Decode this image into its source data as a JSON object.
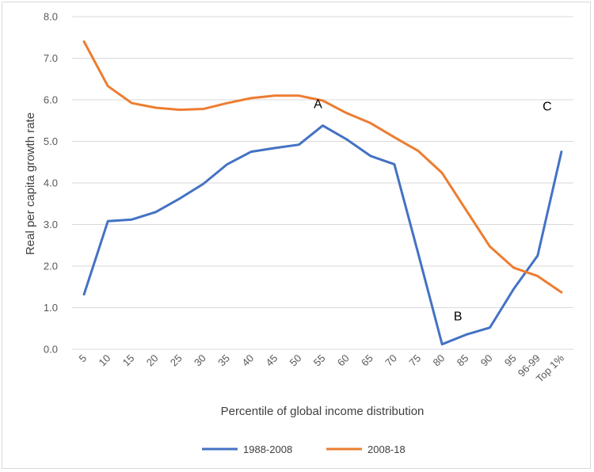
{
  "chart_data": {
    "type": "line",
    "title": "",
    "xlabel": "Percentile of global income distribution",
    "ylabel": "Real per capita growth rate",
    "categories": [
      "5",
      "10",
      "15",
      "20",
      "25",
      "30",
      "35",
      "40",
      "45",
      "50",
      "55",
      "60",
      "65",
      "70",
      "75",
      "80",
      "85",
      "90",
      "95",
      "96-99",
      "Top 1%"
    ],
    "ylim": [
      0,
      8
    ],
    "yticks": [
      0,
      1,
      2,
      3,
      4,
      5,
      6,
      7,
      8
    ],
    "ytick_labels": [
      "0.0",
      "1.0",
      "2.0",
      "3.0",
      "4.0",
      "5.0",
      "6.0",
      "7.0",
      "8.0"
    ],
    "grid": true,
    "legend_position": "bottom",
    "series": [
      {
        "name": "1988-2008",
        "color": "#4472C4",
        "values": [
          1.32,
          3.08,
          3.12,
          3.3,
          3.62,
          3.98,
          4.45,
          4.75,
          4.84,
          4.92,
          5.38,
          5.05,
          4.65,
          4.45,
          2.3,
          0.12,
          0.35,
          0.52,
          1.45,
          2.25,
          4.75
        ]
      },
      {
        "name": "2008-18",
        "color": "#ED7D31",
        "values": [
          7.4,
          6.33,
          5.92,
          5.81,
          5.76,
          5.78,
          5.92,
          6.04,
          6.1,
          6.1,
          5.98,
          5.68,
          5.44,
          5.1,
          4.77,
          4.24,
          3.35,
          2.47,
          1.96,
          1.76,
          1.37
        ]
      }
    ],
    "annotations": [
      {
        "text": "A",
        "x": "55",
        "y": 5.38
      },
      {
        "text": "B",
        "x": "80",
        "y": 0.12
      },
      {
        "text": "C",
        "x": "Top 1%",
        "y": 4.75
      }
    ]
  }
}
